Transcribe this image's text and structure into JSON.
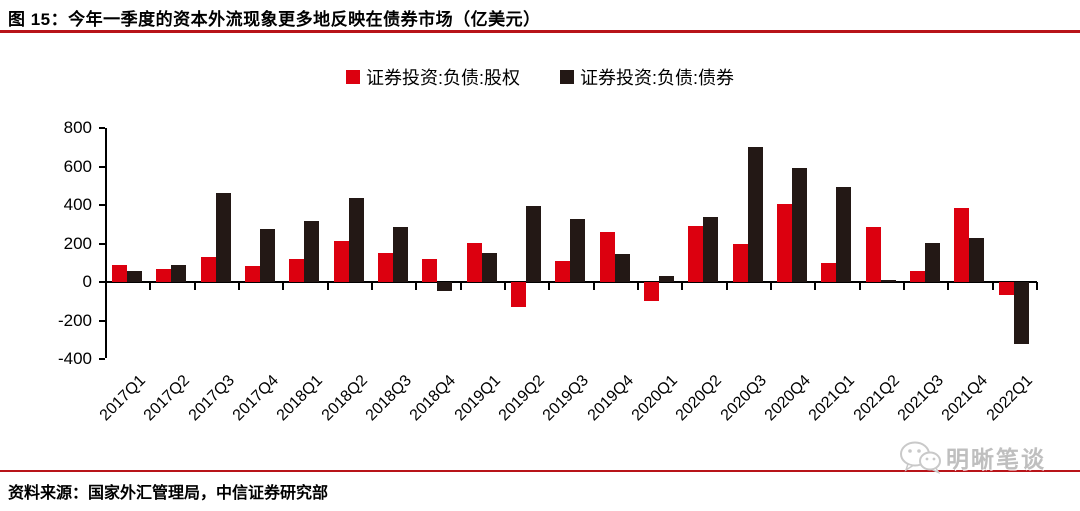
{
  "header": {
    "title": "图 15：今年一季度的资本外流现象更多地反映在债券市场（亿美元）"
  },
  "legend": [
    {
      "label": "证券投资:负债:股权",
      "color": "#dc000f"
    },
    {
      "label": "证券投资:负债:债券",
      "color": "#231815"
    }
  ],
  "chart_data": {
    "type": "bar",
    "title": "今年一季度的资本外流现象更多地反映在债券市场",
    "unit": "亿美元",
    "categories": [
      "2017Q1",
      "2017Q2",
      "2017Q3",
      "2017Q4",
      "2018Q1",
      "2018Q2",
      "2018Q3",
      "2018Q4",
      "2019Q1",
      "2019Q2",
      "2019Q3",
      "2019Q4",
      "2020Q1",
      "2020Q2",
      "2020Q3",
      "2020Q4",
      "2021Q1",
      "2021Q2",
      "2021Q3",
      "2021Q4",
      "2022Q1"
    ],
    "series": [
      {
        "name": "证券投资:负债:股权",
        "color": "#dc000f",
        "values": [
          90,
          65,
          130,
          82,
          120,
          215,
          152,
          120,
          205,
          -130,
          110,
          260,
          -100,
          290,
          200,
          405,
          100,
          285,
          55,
          385,
          -70
        ]
      },
      {
        "name": "证券投资:负债:债券",
        "color": "#231815",
        "values": [
          55,
          90,
          460,
          275,
          318,
          438,
          285,
          -45,
          153,
          395,
          325,
          148,
          33,
          337,
          700,
          590,
          495,
          8,
          205,
          228,
          -320
        ]
      }
    ],
    "ylim": [
      -400,
      800
    ],
    "yticks": [
      800,
      600,
      400,
      200,
      0,
      -200,
      -400
    ],
    "grid": false,
    "legend_position": "top"
  },
  "footer": {
    "source": "资料来源：国家外汇管理局，中信证券研究部"
  },
  "watermark": {
    "icon": "wechat-icon",
    "label": "明晰笔谈"
  },
  "colors": {
    "accent_red": "#b81419",
    "bar_red": "#dc000f",
    "bar_black": "#231815",
    "watermark_gray": "#bfbfbf"
  }
}
